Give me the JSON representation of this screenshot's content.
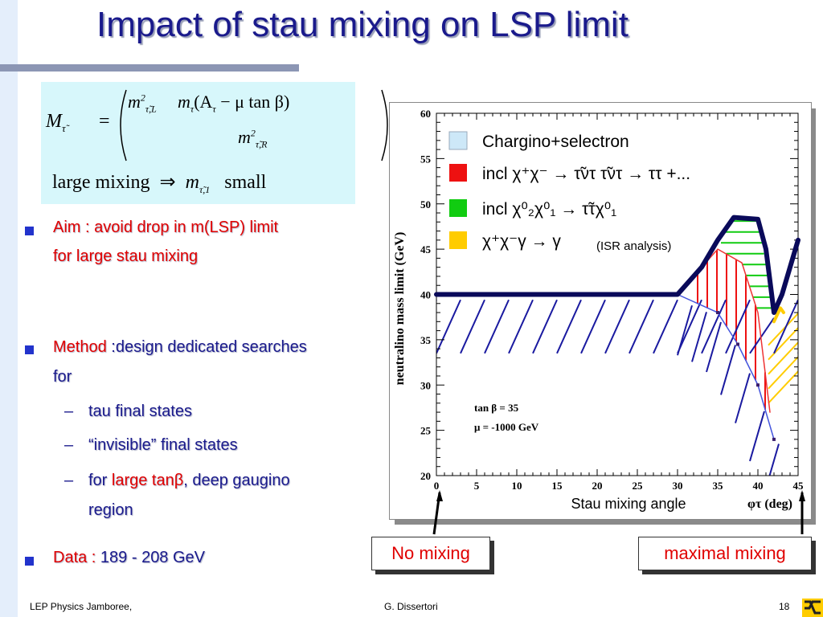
{
  "title": "Impact of stau mixing on LSP limit",
  "formula": {
    "lhs": "M",
    "lhs_sub": "τ̃",
    "eq": "=",
    "m11": "m",
    "m11_sup": "2",
    "m11_sub": "τ̃,L",
    "m12": "m",
    "m12_sub": "τ",
    "m12_rest": "(A",
    "m12_rest_sub": "τ",
    "m12_tail": " − μ  tan β)",
    "m22": "m",
    "m22_sup": "2",
    "m22_sub": "τ̃,R",
    "bottom_left": "large mixing",
    "arrow": "⇒",
    "bottom_m": "m",
    "bottom_m_sub": "τ̃,1",
    "bottom_right": "small"
  },
  "bullets": {
    "aim_label": "Aim :",
    "aim_text": "avoid drop in m(LSP) limit",
    "aim_text2": "for large stau mixing",
    "method_label": "Method",
    "method_text": ":design dedicated searches",
    "method_text2": "for",
    "sub1": "tau final states",
    "sub2": "“invisible” final states",
    "sub3_pre": "for",
    "sub3_red": "large tanβ",
    "sub3_post": ", deep gaugino",
    "sub3_line2": "region",
    "dash": "–",
    "data_label": "Data :",
    "data_text": "189 - 208 GeV"
  },
  "annotations": {
    "no_mixing": "No mixing",
    "maximal_mixing": "maximal mixing"
  },
  "footer": {
    "left": "LEP Physics Jamboree,",
    "center": "G. Dissertori",
    "page": "18"
  },
  "chart_data": {
    "type": "line",
    "xlabel": "Stau mixing angle",
    "xlabel_symbol": "φτ (deg)",
    "ylabel": "neutralino mass limit (GeV)",
    "xlim": [
      0,
      45
    ],
    "ylim": [
      20,
      60
    ],
    "x_ticks": [
      "0",
      "5",
      "10",
      "15",
      "20",
      "25",
      "30",
      "35",
      "40",
      "45"
    ],
    "y_ticks": [
      "20",
      "25",
      "30",
      "35",
      "40",
      "45",
      "50",
      "55",
      "60"
    ],
    "params": [
      "tan β = 35",
      "μ = -1000 GeV"
    ],
    "legend": [
      {
        "label": "Chargino+selectron",
        "color": "#cde8f8"
      },
      {
        "label": "incl  χ⁺χ⁻ → τ̃ντ τ̃ντ → ττ +...",
        "color": "#ee1111"
      },
      {
        "label": "incl  χ⁰₂χ⁰₁ → τ̃τχ⁰₁",
        "color": "#11cc11"
      },
      {
        "label": "χ⁺χ⁻γ → γ",
        "color": "#ffcc00"
      }
    ],
    "legend_note": "(ISR analysis)",
    "series": [
      {
        "name": "Chargino+selectron",
        "color": "#4455dd",
        "x": [
          30,
          35,
          37.5,
          40,
          42
        ],
        "y": [
          40,
          38,
          34.5,
          30,
          24
        ]
      },
      {
        "name": "incl  χ⁺χ⁻ → τ̃ντ τ̃ντ → ττ +...",
        "color": "#ee3333",
        "x": [
          30,
          35,
          38,
          40,
          41.5
        ],
        "y": [
          40,
          45,
          43.5,
          38,
          27
        ]
      },
      {
        "name": "incl  χ⁰₂χ⁰₁ → τ̃τχ⁰₁",
        "color": "#11cc11",
        "x": [
          35,
          37,
          40,
          42
        ],
        "y": [
          45,
          49,
          48.5,
          38
        ]
      },
      {
        "name": "χ⁺χ⁻γ → γ",
        "color": "#ffcc00",
        "x": [
          42,
          42.8,
          43.2
        ],
        "y": [
          37,
          38.5,
          38
        ]
      },
      {
        "name": "combined",
        "color": "#0a0a5a",
        "x": [
          0,
          30,
          33,
          35,
          37,
          40,
          41,
          42,
          43,
          45
        ],
        "y": [
          40,
          40,
          43,
          46,
          48.5,
          48.3,
          45,
          38,
          40,
          46
        ]
      }
    ]
  }
}
